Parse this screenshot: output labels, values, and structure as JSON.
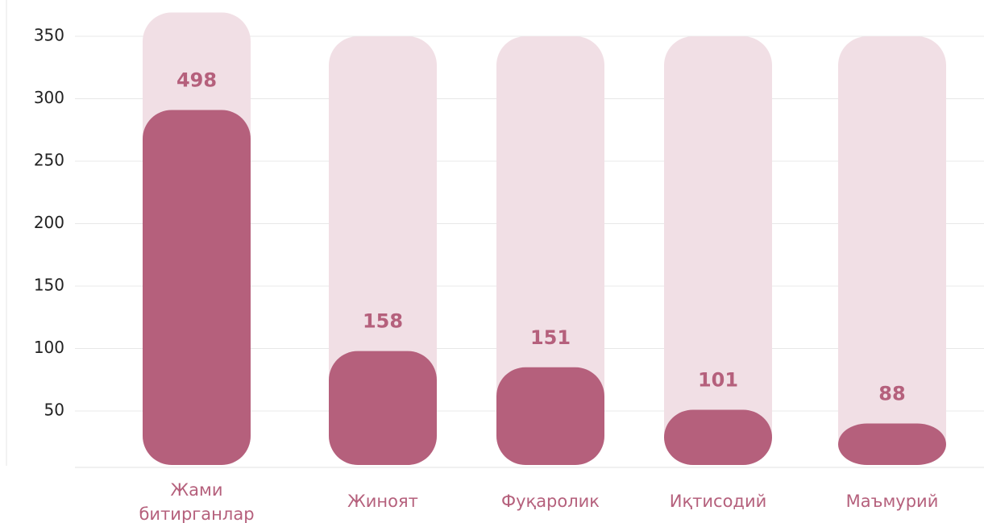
{
  "chart_data": {
    "type": "bar",
    "categories": [
      "Жами битирганлар",
      "Жиноят",
      "Фуқаролик",
      "Иқтисодий",
      "Маъмурий"
    ],
    "values": [
      291,
      98,
      85,
      51,
      40
    ],
    "annotations": [
      "498",
      "158",
      "151",
      "101",
      "88"
    ],
    "color": "#b5607c",
    "track_color": "#f1dfe5",
    "ylim": [
      0,
      350
    ],
    "yticks": [
      50,
      100,
      150,
      200,
      250,
      300,
      350
    ],
    "grid": true
  }
}
